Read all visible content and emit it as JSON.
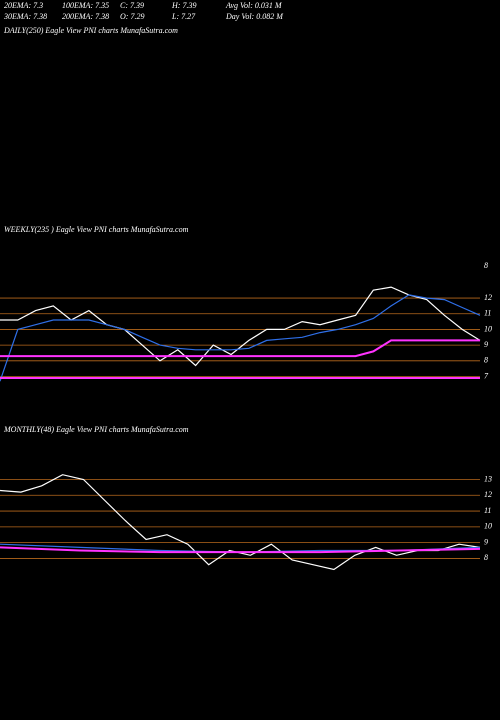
{
  "header": {
    "items": [
      [
        "20EMA: 7.3",
        "100EMA: 7.35",
        "C: 7.39",
        "H: 7.39",
        "Avg Vol: 0.031 M"
      ],
      [
        "30EMA: 7.38",
        "200EMA: 7.38",
        "O: 7.29",
        "L: 7.27",
        "Day Vol: 0.082 M"
      ]
    ]
  },
  "chart_data": [
    {
      "type": "line",
      "title": "DAILY(250) Eagle View PNI charts MunafaSutra.com",
      "series": []
    },
    {
      "type": "line",
      "title": "WEEKLY(235 ) Eagle View PNI charts MunafaSutra.com",
      "top_label": "8",
      "ylim": [
        5.5,
        14.3
      ],
      "yticks": [
        12,
        11,
        10,
        9,
        8,
        7
      ],
      "grid": true,
      "grid_color": "#b8691c",
      "series": [
        {
          "color": "#ffffff",
          "values": [
            10.6,
            10.6,
            11.2,
            11.5,
            10.6,
            11.2,
            10.3,
            10.0,
            9.0,
            8.0,
            8.7,
            7.7,
            9.0,
            8.4,
            9.3,
            10.0,
            10.0,
            10.5,
            10.3,
            10.6,
            10.9,
            12.5,
            12.7,
            12.2,
            11.9,
            10.9,
            10.0,
            9.3
          ]
        },
        {
          "color": "#2f6fe8",
          "values": [
            6.7,
            10.0,
            10.3,
            10.6,
            10.6,
            10.6,
            10.3,
            10.0,
            9.5,
            9.0,
            8.8,
            8.7,
            8.7,
            8.7,
            8.8,
            9.3,
            9.4,
            9.5,
            9.8,
            10.0,
            10.3,
            10.7,
            11.5,
            12.2,
            12.0,
            11.9,
            11.4,
            10.9
          ]
        },
        {
          "color": "#ff33ff",
          "values": [
            8.3,
            8.3,
            8.3,
            8.3,
            8.3,
            8.3,
            8.3,
            8.3,
            8.3,
            8.3,
            8.3,
            8.3,
            8.3,
            8.3,
            8.3,
            8.3,
            8.3,
            8.3,
            8.3,
            8.3,
            8.3,
            8.6,
            9.3,
            9.3,
            9.3,
            9.3,
            9.3,
            9.3
          ]
        },
        {
          "color": "#ff33ff",
          "values": [
            6.9,
            6.9,
            6.9,
            6.9,
            6.9,
            6.9,
            6.9,
            6.9,
            6.9,
            6.9,
            6.9,
            6.9,
            6.9,
            6.9,
            6.9,
            6.9,
            6.9,
            6.9,
            6.9,
            6.9,
            6.9,
            6.9,
            6.9,
            6.9,
            6.9,
            6.9,
            6.9,
            6.9
          ]
        }
      ]
    },
    {
      "type": "line",
      "title": "MONTHLY(48) Eagle View PNI charts MunafaSutra.com",
      "ylim": [
        6,
        13.6
      ],
      "yticks": [
        13,
        12,
        11,
        10,
        9,
        8
      ],
      "grid": true,
      "grid_color": "#b8691c",
      "series": [
        {
          "color": "#ffffff",
          "values": [
            12.3,
            12.2,
            12.6,
            13.3,
            13.0,
            11.7,
            10.4,
            9.2,
            9.5,
            8.9,
            7.6,
            8.5,
            8.2,
            8.9,
            7.9,
            7.6,
            7.3,
            8.2,
            8.7,
            8.2,
            8.5,
            8.5,
            8.9,
            8.7
          ]
        },
        {
          "color": "#2f6fe8",
          "values": [
            8.9,
            8.7,
            8.5,
            8.4,
            8.5,
            8.5,
            8.7
          ]
        },
        {
          "color": "#ff33ff",
          "values": [
            8.7,
            8.5,
            8.4,
            8.4,
            8.4,
            8.5,
            8.6
          ]
        }
      ]
    }
  ]
}
